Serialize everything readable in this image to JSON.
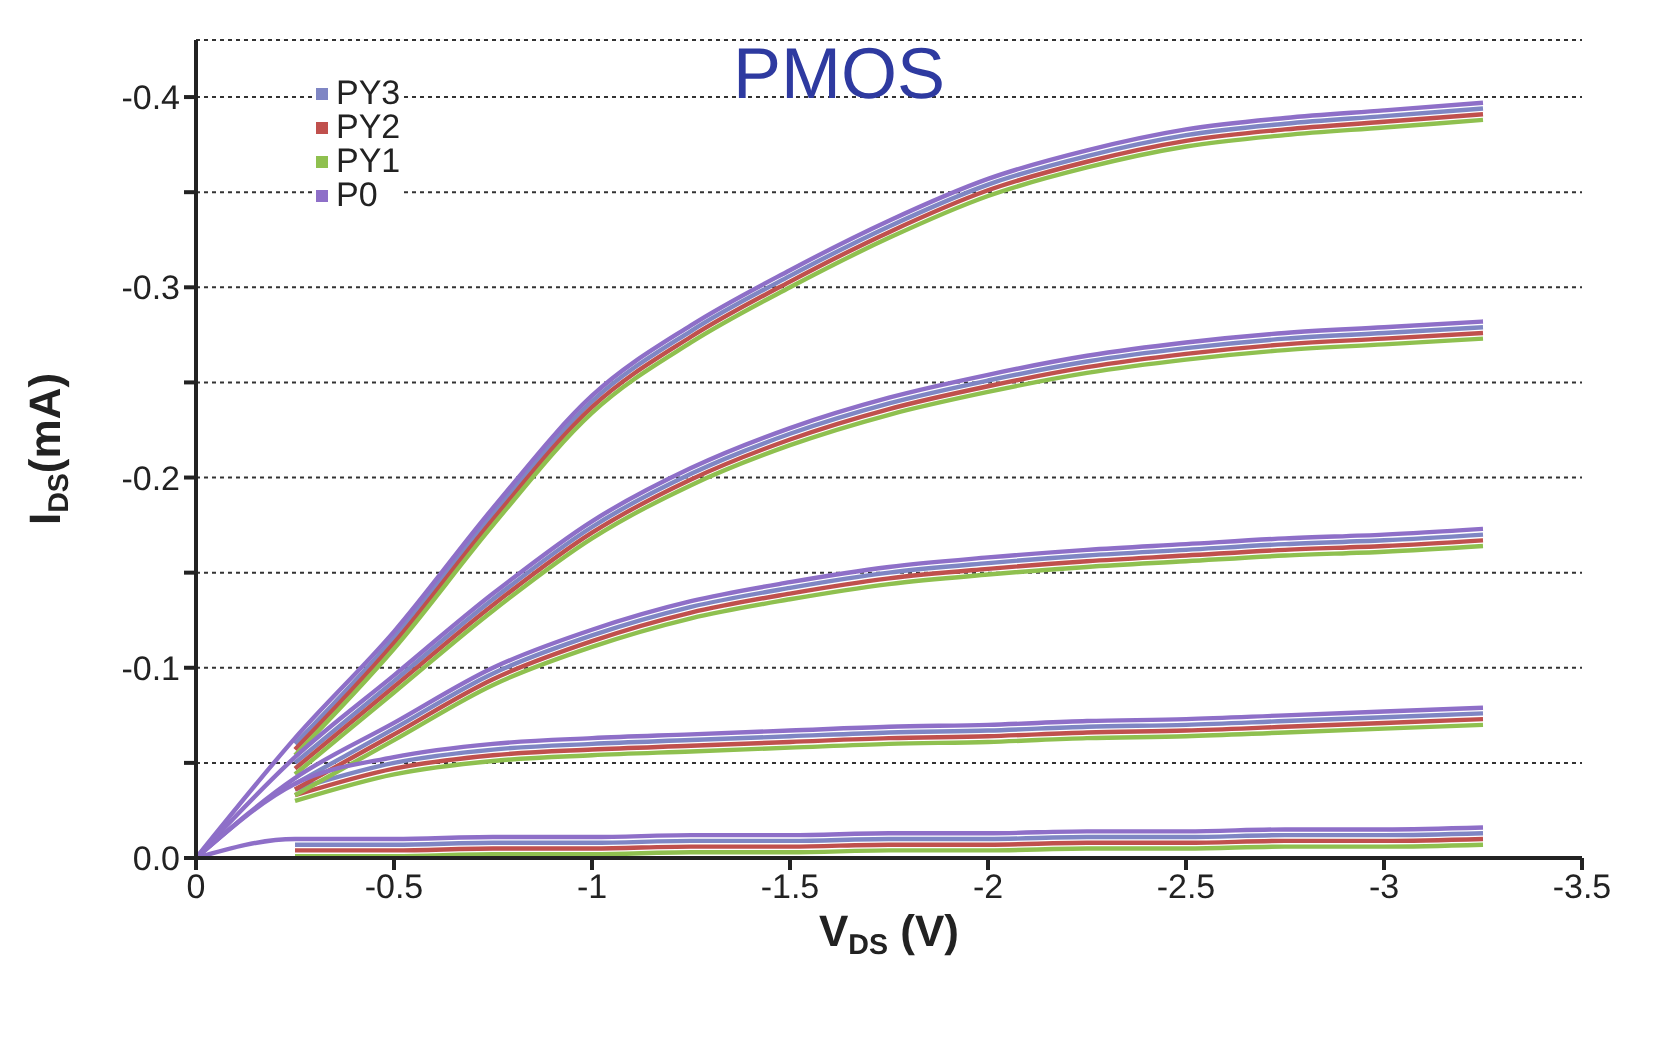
{
  "chart_data": {
    "type": "line",
    "title": "PMOS",
    "xlabel": "V$_{DS}$ (V)",
    "ylabel": "I$_{DS}$(mA)",
    "x": [
      0,
      -0.25,
      -0.5,
      -0.75,
      -1,
      -1.25,
      -1.5,
      -1.75,
      -2,
      -2.25,
      -2.5,
      -2.75,
      -3,
      -3.25
    ],
    "xlim": [
      0,
      -3.5
    ],
    "xticks": [
      0,
      -0.5,
      -1,
      -1.5,
      -2,
      -2.5,
      -3,
      -3.5
    ],
    "ylim": [
      0,
      -0.43
    ],
    "yticks": [
      {
        "value": 0,
        "label": "0.0"
      },
      {
        "value": -0.05,
        "label": null
      },
      -0.1,
      {
        "value": -0.15,
        "label": null
      },
      -0.2,
      {
        "value": -0.25,
        "label": null
      },
      -0.3,
      {
        "value": -0.35,
        "label": null
      },
      -0.4
    ],
    "grid": "y",
    "legend": "top left",
    "line_style": "solid",
    "series": [
      {
        "name": "PY3",
        "color": "#7f86c4",
        "values": [
          null,
          -0.06,
          -0.116,
          -0.181,
          -0.24,
          -0.277,
          -0.306,
          -0.332,
          -0.354,
          -0.369,
          -0.38,
          -0.386,
          -0.39,
          -0.394
        ]
      },
      {
        "color": "#7f86c4",
        "values": [
          null,
          -0.05,
          -0.093,
          -0.136,
          -0.174,
          -0.202,
          -0.223,
          -0.239,
          -0.251,
          -0.261,
          -0.268,
          -0.273,
          -0.276,
          -0.279
        ]
      },
      {
        "color": "#7f86c4",
        "values": [
          null,
          -0.039,
          -0.068,
          -0.097,
          -0.117,
          -0.132,
          -0.142,
          -0.15,
          -0.155,
          -0.159,
          -0.162,
          -0.165,
          -0.167,
          -0.17
        ]
      },
      {
        "color": "#7f86c4",
        "values": [
          null,
          -0.036,
          -0.05,
          -0.057,
          -0.06,
          -0.062,
          -0.064,
          -0.066,
          -0.067,
          -0.069,
          -0.07,
          -0.072,
          -0.074,
          -0.076
        ]
      },
      {
        "color": "#7f86c4",
        "values": [
          null,
          -0.007,
          -0.007,
          -0.008,
          -0.008,
          -0.009,
          -0.009,
          -0.01,
          -0.01,
          -0.011,
          -0.011,
          -0.012,
          -0.012,
          -0.013
        ]
      },
      {
        "name": "PY2",
        "color": "#c0504d",
        "values": [
          null,
          -0.057,
          -0.113,
          -0.178,
          -0.237,
          -0.274,
          -0.303,
          -0.329,
          -0.351,
          -0.366,
          -0.377,
          -0.383,
          -0.387,
          -0.391
        ]
      },
      {
        "color": "#c0504d",
        "values": [
          null,
          -0.047,
          -0.09,
          -0.133,
          -0.171,
          -0.199,
          -0.22,
          -0.236,
          -0.248,
          -0.258,
          -0.265,
          -0.27,
          -0.273,
          -0.276
        ]
      },
      {
        "color": "#c0504d",
        "values": [
          null,
          -0.036,
          -0.065,
          -0.094,
          -0.114,
          -0.129,
          -0.139,
          -0.147,
          -0.152,
          -0.156,
          -0.159,
          -0.162,
          -0.164,
          -0.167
        ]
      },
      {
        "color": "#c0504d",
        "values": [
          null,
          -0.033,
          -0.047,
          -0.054,
          -0.057,
          -0.059,
          -0.061,
          -0.063,
          -0.064,
          -0.066,
          -0.067,
          -0.069,
          -0.071,
          -0.073
        ]
      },
      {
        "color": "#c0504d",
        "values": [
          null,
          -0.004,
          -0.004,
          -0.005,
          -0.005,
          -0.006,
          -0.006,
          -0.007,
          -0.007,
          -0.008,
          -0.008,
          -0.009,
          -0.009,
          -0.01
        ]
      },
      {
        "name": "PY1",
        "color": "#8fc04f",
        "values": [
          null,
          -0.054,
          -0.11,
          -0.175,
          -0.234,
          -0.271,
          -0.3,
          -0.326,
          -0.348,
          -0.363,
          -0.374,
          -0.38,
          -0.384,
          -0.388
        ]
      },
      {
        "color": "#8fc04f",
        "values": [
          null,
          -0.044,
          -0.087,
          -0.13,
          -0.168,
          -0.196,
          -0.217,
          -0.233,
          -0.245,
          -0.255,
          -0.262,
          -0.267,
          -0.27,
          -0.273
        ]
      },
      {
        "color": "#8fc04f",
        "values": [
          null,
          -0.033,
          -0.062,
          -0.091,
          -0.111,
          -0.126,
          -0.136,
          -0.144,
          -0.149,
          -0.153,
          -0.156,
          -0.159,
          -0.161,
          -0.164
        ]
      },
      {
        "color": "#8fc04f",
        "values": [
          null,
          -0.03,
          -0.044,
          -0.051,
          -0.054,
          -0.056,
          -0.058,
          -0.06,
          -0.061,
          -0.063,
          -0.064,
          -0.066,
          -0.068,
          -0.07
        ]
      },
      {
        "color": "#8fc04f",
        "values": [
          null,
          -0.001,
          -0.001,
          -0.002,
          -0.002,
          -0.003,
          -0.003,
          -0.004,
          -0.004,
          -0.005,
          -0.005,
          -0.006,
          -0.006,
          -0.007
        ]
      },
      {
        "name": "P0",
        "color": "#8e6fc8",
        "values": [
          0,
          -0.063,
          -0.119,
          -0.184,
          -0.243,
          -0.28,
          -0.309,
          -0.335,
          -0.357,
          -0.372,
          -0.383,
          -0.389,
          -0.393,
          -0.397
        ]
      },
      {
        "color": "#8e6fc8",
        "values": [
          0,
          -0.053,
          -0.096,
          -0.139,
          -0.177,
          -0.205,
          -0.226,
          -0.242,
          -0.254,
          -0.264,
          -0.271,
          -0.276,
          -0.279,
          -0.282
        ]
      },
      {
        "color": "#8e6fc8",
        "values": [
          0,
          -0.042,
          -0.071,
          -0.1,
          -0.12,
          -0.135,
          -0.145,
          -0.153,
          -0.158,
          -0.162,
          -0.165,
          -0.168,
          -0.17,
          -0.173
        ]
      },
      {
        "color": "#8e6fc8",
        "values": [
          0,
          -0.039,
          -0.053,
          -0.06,
          -0.063,
          -0.065,
          -0.067,
          -0.069,
          -0.07,
          -0.072,
          -0.073,
          -0.075,
          -0.077,
          -0.079
        ]
      },
      {
        "color": "#8e6fc8",
        "values": [
          0,
          -0.01,
          -0.01,
          -0.011,
          -0.011,
          -0.012,
          -0.012,
          -0.013,
          -0.013,
          -0.014,
          -0.014,
          -0.015,
          -0.015,
          -0.016
        ]
      }
    ]
  }
}
